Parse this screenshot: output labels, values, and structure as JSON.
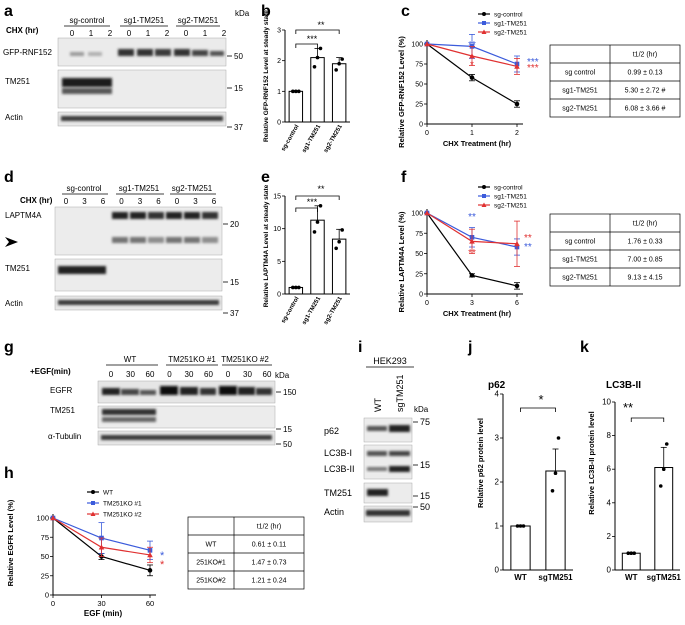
{
  "panels": {
    "a": {
      "letter": "a",
      "cond_label": "CHX (hr)",
      "groups": [
        "sg-control",
        "sg1-TM251",
        "sg2-TM251"
      ],
      "lane_labels": [
        "0",
        "1",
        "2",
        "0",
        "1",
        "2",
        "0",
        "1",
        "2"
      ],
      "blots": [
        "GFP-RNF152",
        "TM251",
        "Actin"
      ],
      "unit": "kDa",
      "markers": [
        "50",
        "15",
        "37"
      ]
    },
    "b": {
      "letter": "b",
      "ylabel": "Relative GFP-RNF152 Level at steady state",
      "sig": [
        "***",
        "**"
      ]
    },
    "c": {
      "letter": "c",
      "ylabel": "Relative GFP-RNF152 Level (%)",
      "xlabel": "CHX Treatment (hr)",
      "legend": [
        "sg-control",
        "sg1-TM251",
        "sg2-TM251"
      ],
      "stars": [
        "**",
        "*",
        "***",
        "***"
      ],
      "table_header": "t1/2 (hr)",
      "table": [
        [
          "sg control",
          "0.99 ± 0.13"
        ],
        [
          "sg1-TM251",
          "5.30 ± 2.72 #"
        ],
        [
          "sg2-TM251",
          "6.08 ± 3.66 #"
        ]
      ]
    },
    "d": {
      "letter": "d",
      "cond_label": "CHX (hr)",
      "groups": [
        "sg-control",
        "sg1-TM251",
        "sg2-TM251"
      ],
      "lane_labels": [
        "0",
        "3",
        "6",
        "0",
        "3",
        "6",
        "0",
        "3",
        "6"
      ],
      "blots": [
        "LAPTM4A",
        "TM251",
        "Actin"
      ],
      "markers": [
        "20",
        "15",
        "37"
      ]
    },
    "e": {
      "letter": "e",
      "ylabel": "Relative LAPTM4A Level at steady state",
      "sig": [
        "***",
        "**"
      ]
    },
    "f": {
      "letter": "f",
      "ylabel": "Relative LAPTM4A Level (%)",
      "xlabel": "CHX Treatment (hr)",
      "legend": [
        "sg-control",
        "sg1-TM251",
        "sg2-TM251"
      ],
      "stars": [
        "**",
        "**",
        "**",
        "**"
      ],
      "table_header": "t1/2 (hr)",
      "table": [
        [
          "sg control",
          "1.76 ± 0.33"
        ],
        [
          "sg1-TM251",
          "7.00 ± 0.85"
        ],
        [
          "sg2-TM251",
          "9.13 ± 4.15"
        ]
      ]
    },
    "g": {
      "letter": "g",
      "cond_label": "+EGF(min)",
      "groups": [
        "WT",
        "TM251KO #1",
        "TM251KO #2"
      ],
      "lane_labels": [
        "0",
        "30",
        "60",
        "0",
        "30",
        "60",
        "0",
        "30",
        "60"
      ],
      "blots": [
        "EGFR",
        "TM251",
        "α-Tubulin"
      ],
      "unit": "kDa",
      "markers": [
        "150",
        "15",
        "50"
      ]
    },
    "h": {
      "letter": "h",
      "ylabel": "Relative EGFR Level (%)",
      "xlabel": "EGF (min)",
      "legend": [
        "WT",
        "TM251KO #1",
        "TM251KO #2"
      ],
      "stars": [
        "*",
        "*"
      ],
      "table_header": "t1/2 (hr)",
      "table": [
        [
          "WT",
          "0.61 ± 0.11"
        ],
        [
          "251KO#1",
          "1.47 ± 0.73"
        ],
        [
          "251KO#2",
          "1.21 ± 0.24"
        ]
      ]
    },
    "i": {
      "letter": "i",
      "cell_line": "HEK293",
      "lanes": [
        "WT",
        "sgTM251"
      ],
      "unit": "kDa",
      "blots": [
        "p62",
        "LC3B-I",
        "LC3B-II",
        "TM251",
        "Actin"
      ],
      "markers": [
        "75",
        "15",
        "15",
        "50"
      ]
    },
    "j": {
      "letter": "j",
      "title": "p62",
      "ylabel": "Relative p62 protein level",
      "sig": "*"
    },
    "k": {
      "letter": "k",
      "title": "LC3B-II",
      "ylabel": "Relative LC3B-II protein level",
      "sig": "**"
    }
  },
  "chart_data": [
    {
      "id": "b",
      "type": "bar",
      "categories": [
        "sg-control",
        "sg1-TM251",
        "sg2-TM251"
      ],
      "values": [
        1.0,
        2.1,
        1.9
      ],
      "errors": [
        0.02,
        0.3,
        0.2
      ],
      "points": [
        [
          1.0,
          1.0,
          1.0
        ],
        [
          1.8,
          2.1,
          2.4
        ],
        [
          1.7,
          1.9,
          2.05
        ]
      ],
      "ylim": [
        0,
        3
      ],
      "yticks": [
        0,
        1,
        2,
        3
      ],
      "ylabel": "Relative GFP-RNF152 Level at steady state"
    },
    {
      "id": "c",
      "type": "line",
      "x": [
        0,
        1,
        2
      ],
      "xticks": [
        0,
        1,
        2
      ],
      "ylim": [
        0,
        100
      ],
      "yticks": [
        0,
        25,
        50,
        75,
        100
      ],
      "series": [
        {
          "name": "sg-control",
          "color": "#000000",
          "marker": "circle",
          "values": [
            100,
            58,
            25
          ],
          "errors": [
            0,
            4,
            4
          ]
        },
        {
          "name": "sg1-TM251",
          "color": "#3b5bdb",
          "marker": "square",
          "values": [
            100,
            97,
            75
          ],
          "errors": [
            0,
            15,
            10
          ]
        },
        {
          "name": "sg2-TM251",
          "color": "#e03131",
          "marker": "triangle",
          "values": [
            100,
            85,
            72
          ],
          "errors": [
            0,
            12,
            10
          ]
        }
      ],
      "xlabel": "CHX Treatment (hr)",
      "ylabel": "Relative GFP-RNF152 Level (%)"
    },
    {
      "id": "e",
      "type": "bar",
      "categories": [
        "sg-control",
        "sg1-TM251",
        "sg2-TM251"
      ],
      "values": [
        1.0,
        11.3,
        8.4
      ],
      "errors": [
        0.1,
        2.2,
        1.5
      ],
      "points": [
        [
          1.0,
          1.0,
          1.0
        ],
        [
          9.5,
          11.0,
          13.5
        ],
        [
          7.0,
          8.0,
          9.8
        ]
      ],
      "ylim": [
        0,
        15
      ],
      "yticks": [
        0,
        5,
        10,
        15
      ],
      "ylabel": "Relative LAPTM4A Level at steady state"
    },
    {
      "id": "f",
      "type": "line",
      "x": [
        0,
        3,
        6
      ],
      "xticks": [
        0,
        3,
        6
      ],
      "ylim": [
        0,
        100
      ],
      "yticks": [
        0,
        25,
        50,
        75,
        100
      ],
      "series": [
        {
          "name": "sg-control",
          "color": "#000000",
          "marker": "circle",
          "values": [
            100,
            23,
            10
          ],
          "errors": [
            0,
            2,
            4
          ]
        },
        {
          "name": "sg1-TM251",
          "color": "#3b5bdb",
          "marker": "square",
          "values": [
            100,
            70,
            58
          ],
          "errors": [
            0,
            12,
            10
          ]
        },
        {
          "name": "sg2-TM251",
          "color": "#e03131",
          "marker": "triangle",
          "values": [
            100,
            65,
            62
          ],
          "errors": [
            0,
            15,
            28
          ]
        }
      ],
      "xlabel": "CHX Treatment (hr)",
      "ylabel": "Relative LAPTM4A Level (%)"
    },
    {
      "id": "h",
      "type": "line",
      "x": [
        0,
        30,
        60
      ],
      "xticks": [
        0,
        30,
        60
      ],
      "ylim": [
        0,
        100
      ],
      "yticks": [
        0,
        25,
        50,
        75,
        100
      ],
      "series": [
        {
          "name": "WT",
          "color": "#000000",
          "marker": "circle",
          "values": [
            100,
            50,
            32
          ],
          "errors": [
            0,
            4,
            7
          ]
        },
        {
          "name": "TM251KO #1",
          "color": "#3b5bdb",
          "marker": "square",
          "values": [
            100,
            74,
            58
          ],
          "errors": [
            0,
            20,
            12
          ]
        },
        {
          "name": "TM251KO #2",
          "color": "#e03131",
          "marker": "triangle",
          "values": [
            100,
            62,
            52
          ],
          "errors": [
            0,
            12,
            10
          ]
        }
      ],
      "xlabel": "EGF (min)",
      "ylabel": "Relative EGFR Level (%)"
    },
    {
      "id": "j",
      "type": "bar",
      "categories": [
        "WT",
        "sgTM251"
      ],
      "values": [
        1.0,
        2.25
      ],
      "errors": [
        0.02,
        0.5
      ],
      "points": [
        [
          1.0,
          1.0,
          1.0
        ],
        [
          1.8,
          2.2,
          3.0
        ]
      ],
      "ylim": [
        0,
        4
      ],
      "yticks": [
        0,
        1,
        2,
        3,
        4
      ],
      "title": "p62",
      "ylabel": "Relative p62 protein level"
    },
    {
      "id": "k",
      "type": "bar",
      "categories": [
        "WT",
        "sgTM251"
      ],
      "values": [
        1.0,
        6.1
      ],
      "errors": [
        0.05,
        1.2
      ],
      "points": [
        [
          1.0,
          1.0,
          1.0
        ],
        [
          5.0,
          6.0,
          7.5
        ]
      ],
      "ylim": [
        0,
        10
      ],
      "yticks": [
        0,
        2,
        4,
        6,
        8,
        10
      ],
      "title": "LC3B-II",
      "ylabel": "Relative LC3B-II protein level"
    }
  ]
}
